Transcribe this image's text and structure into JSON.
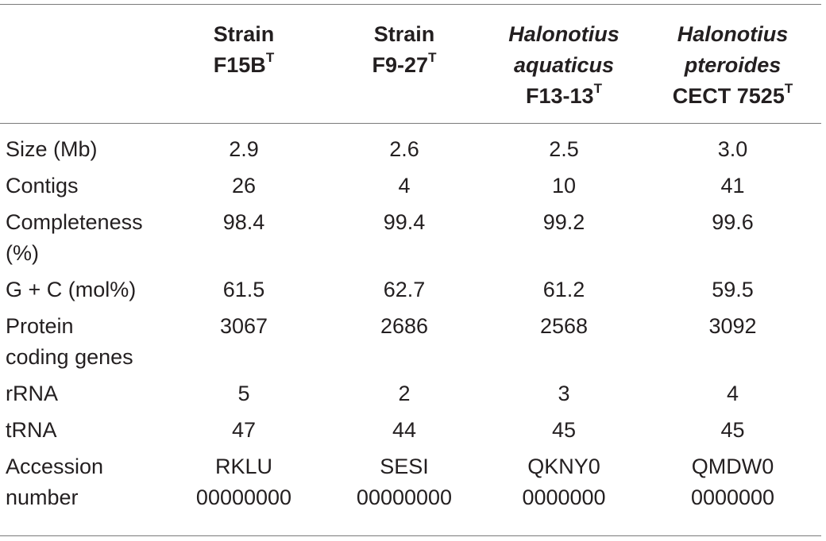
{
  "table": {
    "headers": [
      {
        "lines": []
      },
      {
        "lines": [
          {
            "text": "Strain",
            "italic": false
          },
          {
            "text": "F15B",
            "italic": false,
            "sup": "T"
          }
        ]
      },
      {
        "lines": [
          {
            "text": "Strain",
            "italic": false
          },
          {
            "text": "F9-27",
            "italic": false,
            "sup": "T"
          }
        ]
      },
      {
        "lines": [
          {
            "text": "Halonotius",
            "italic": true
          },
          {
            "text": "aquaticus",
            "italic": true
          },
          {
            "text": "F13-13",
            "italic": false,
            "sup": "T"
          }
        ]
      },
      {
        "lines": [
          {
            "text": "Halonotius",
            "italic": true
          },
          {
            "text": "pteroides",
            "italic": true
          },
          {
            "text": "CECT 7525",
            "italic": false,
            "sup": "T"
          }
        ]
      }
    ],
    "rows": [
      {
        "label": [
          "Size (Mb)"
        ],
        "cells": [
          [
            "2.9"
          ],
          [
            "2.6"
          ],
          [
            "2.5"
          ],
          [
            "3.0"
          ]
        ]
      },
      {
        "label": [
          "Contigs"
        ],
        "cells": [
          [
            "26"
          ],
          [
            "4"
          ],
          [
            "10"
          ],
          [
            "41"
          ]
        ]
      },
      {
        "label": [
          "Completeness",
          "(%)"
        ],
        "cells": [
          [
            "98.4"
          ],
          [
            "99.4"
          ],
          [
            "99.2"
          ],
          [
            "99.6"
          ]
        ]
      },
      {
        "label": [
          "G + C (mol%)"
        ],
        "cells": [
          [
            "61.5"
          ],
          [
            "62.7"
          ],
          [
            "61.2"
          ],
          [
            "59.5"
          ]
        ]
      },
      {
        "label": [
          "Protein",
          "coding genes"
        ],
        "cells": [
          [
            "3067"
          ],
          [
            "2686"
          ],
          [
            "2568"
          ],
          [
            "3092"
          ]
        ]
      },
      {
        "label": [
          "rRNA"
        ],
        "cells": [
          [
            "5"
          ],
          [
            "2"
          ],
          [
            "3"
          ],
          [
            "4"
          ]
        ]
      },
      {
        "label": [
          "tRNA"
        ],
        "cells": [
          [
            "47"
          ],
          [
            "44"
          ],
          [
            "45"
          ],
          [
            "45"
          ]
        ]
      },
      {
        "label": [
          "Accession",
          "number"
        ],
        "cells": [
          [
            "RKLU",
            "00000000"
          ],
          [
            "SESI",
            "00000000"
          ],
          [
            "QKNY0",
            "0000000"
          ],
          [
            "QMDW0",
            "0000000"
          ]
        ]
      }
    ]
  }
}
